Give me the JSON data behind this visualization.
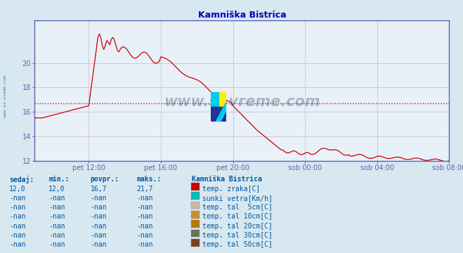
{
  "title": "Kamniška Bistrica",
  "bg_color": "#d8e8f0",
  "plot_bg_color": "#e8f0f8",
  "line_color": "#cc0000",
  "avg_value": 16.7,
  "y_min": 12,
  "y_max": 22,
  "y_ticks": [
    12,
    14,
    16,
    18,
    20
  ],
  "grid_color": "#c8b8d0",
  "axis_color": "#6060b8",
  "title_color": "#0000bb",
  "text_color": "#0058a0",
  "watermark": "www.si-vreme.com",
  "x_tick_pos": [
    36,
    84,
    132,
    180,
    228,
    276
  ],
  "x_labels": [
    "pet 12:00",
    "pet 16:00",
    "pet 20:00",
    "sob 00:00",
    "sob 04:00",
    "sob 08:00"
  ],
  "table_rows": [
    {
      "sedaj": "12,0",
      "min": "12,0",
      "povpr": "16,7",
      "maks": "21,7",
      "label": "temp. zraka[C]",
      "color": "#cc0000"
    },
    {
      "sedaj": "-nan",
      "min": "-nan",
      "povpr": "-nan",
      "maks": "-nan",
      "label": "sunki vetra[Km/h]",
      "color": "#00bbbb"
    },
    {
      "sedaj": "-nan",
      "min": "-nan",
      "povpr": "-nan",
      "maks": "-nan",
      "label": "temp. tal  5cm[C]",
      "color": "#c8b8a0"
    },
    {
      "sedaj": "-nan",
      "min": "-nan",
      "povpr": "-nan",
      "maks": "-nan",
      "label": "temp. tal 10cm[C]",
      "color": "#c89030"
    },
    {
      "sedaj": "-nan",
      "min": "-nan",
      "povpr": "-nan",
      "maks": "-nan",
      "label": "temp. tal 20cm[C]",
      "color": "#b87800"
    },
    {
      "sedaj": "-nan",
      "min": "-nan",
      "povpr": "-nan",
      "maks": "-nan",
      "label": "temp. tal 30cm[C]",
      "color": "#687058"
    },
    {
      "sedaj": "-nan",
      "min": "-nan",
      "povpr": "-nan",
      "maks": "-nan",
      "label": "temp. tal 50cm[C]",
      "color": "#784018"
    }
  ]
}
